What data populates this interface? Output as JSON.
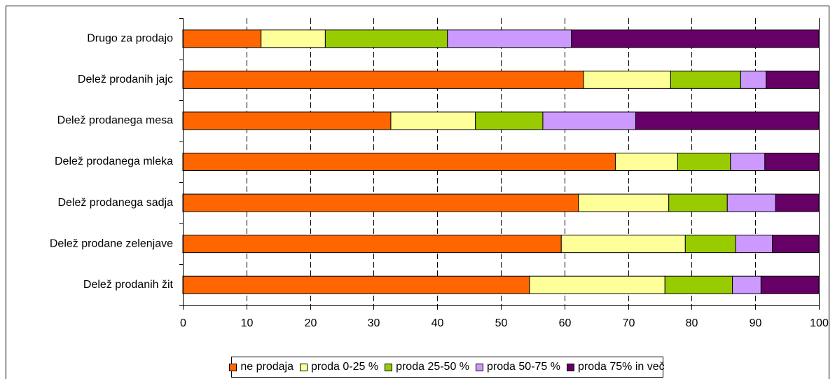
{
  "chart_data": {
    "type": "bar",
    "orientation": "horizontal",
    "stacked": true,
    "categories": [
      "Drugo za prodajo",
      "Delež prodanih jajc",
      "Delež prodanega mesa",
      "Delež prodanega mleka",
      "Delež prodanega sadja",
      "Delež prodane zelenjave",
      "Delež prodanih žit"
    ],
    "series": [
      {
        "name": "ne prodaja",
        "color": "#FF6600",
        "values": [
          12.3,
          63.0,
          32.7,
          68.0,
          62.2,
          59.5,
          54.5
        ]
      },
      {
        "name": "proda 0-25 %",
        "color": "#FFFF99",
        "values": [
          10.1,
          13.7,
          13.3,
          9.8,
          14.2,
          19.5,
          21.3
        ]
      },
      {
        "name": "proda 25-50 %",
        "color": "#99CC00",
        "values": [
          19.2,
          11.0,
          10.6,
          8.3,
          9.2,
          7.9,
          10.6
        ]
      },
      {
        "name": "proda 50-75 %",
        "color": "#CC99FF",
        "values": [
          19.5,
          4.0,
          14.6,
          5.4,
          7.6,
          5.8,
          4.5
        ]
      },
      {
        "name": "proda 75% in več",
        "color": "#660066",
        "values": [
          38.9,
          8.3,
          28.8,
          8.5,
          6.8,
          7.3,
          9.1
        ]
      }
    ],
    "xlim": [
      0,
      100
    ],
    "xticks": [
      0,
      10,
      20,
      30,
      40,
      50,
      60,
      70,
      80,
      90,
      100
    ],
    "grid": "vertical dashed",
    "legend": "bottom",
    "title": "",
    "xlabel": "",
    "ylabel": ""
  }
}
